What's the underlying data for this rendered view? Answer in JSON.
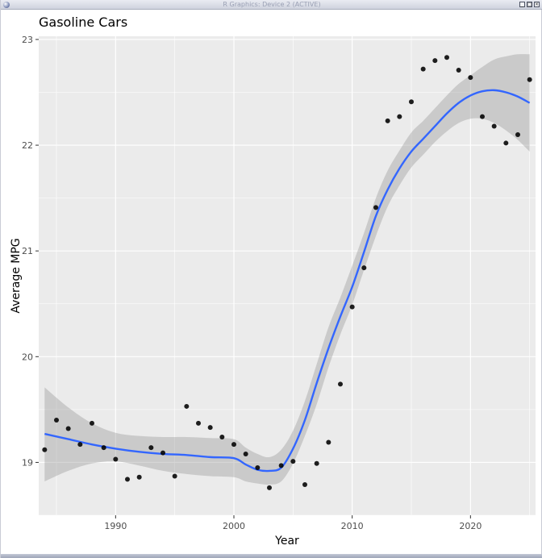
{
  "window": {
    "title": "R Graphics: Device 2 (ACTIVE)"
  },
  "colors": {
    "panel_background": "#EBEBEB",
    "grid_major": "#FFFFFF",
    "smooth_line": "#3366FF",
    "confidence_band": "#999999",
    "points": "#000000"
  },
  "chart_data": {
    "type": "scatter",
    "title": "Gasoline Cars",
    "xlabel": "Year",
    "ylabel": "Average MPG",
    "xlim": [
      1983.5,
      2025.5
    ],
    "ylim": [
      18.5,
      23.03
    ],
    "x_ticks": [
      1990,
      2000,
      2010,
      2020
    ],
    "y_ticks": [
      19,
      20,
      21,
      22,
      23
    ],
    "grid": true,
    "legend": "none",
    "points": {
      "x": [
        1984,
        1985,
        1986,
        1987,
        1988,
        1989,
        1990,
        1991,
        1992,
        1993,
        1994,
        1995,
        1996,
        1997,
        1998,
        1999,
        2000,
        2001,
        2002,
        2003,
        2004,
        2005,
        2006,
        2007,
        2008,
        2009,
        2010,
        2011,
        2012,
        2013,
        2014,
        2015,
        2016,
        2017,
        2018,
        2019,
        2020,
        2021,
        2022,
        2023,
        2024,
        2025
      ],
      "y": [
        19.12,
        19.4,
        19.32,
        19.17,
        19.37,
        19.14,
        19.03,
        18.84,
        18.86,
        19.14,
        19.09,
        18.87,
        19.53,
        19.37,
        19.33,
        19.24,
        19.17,
        19.08,
        18.95,
        18.76,
        18.97,
        19.01,
        18.79,
        18.99,
        19.19,
        19.74,
        20.47,
        20.84,
        21.41,
        22.23,
        22.27,
        22.41,
        22.72,
        22.8,
        22.83,
        22.71,
        22.64,
        22.27,
        22.18,
        22.02,
        22.1,
        22.62
      ]
    },
    "smooth": {
      "method": "loess",
      "x": [
        1984,
        1986,
        1988,
        1990,
        1992,
        1994,
        1996,
        1998,
        2000,
        2001,
        2002,
        2003,
        2004,
        2005,
        2006,
        2007,
        2008,
        2009,
        2010,
        2011,
        2012,
        2013,
        2014,
        2015,
        2016,
        2017,
        2018,
        2019,
        2020,
        2021,
        2022,
        2023,
        2024,
        2025
      ],
      "y": [
        19.27,
        19.22,
        19.17,
        19.13,
        19.1,
        19.08,
        19.07,
        19.05,
        19.04,
        18.98,
        18.93,
        18.92,
        18.95,
        19.13,
        19.4,
        19.75,
        20.08,
        20.38,
        20.66,
        20.99,
        21.33,
        21.58,
        21.78,
        21.94,
        22.06,
        22.18,
        22.3,
        22.4,
        22.47,
        22.51,
        22.52,
        22.5,
        22.46,
        22.4
      ],
      "lower": [
        18.82,
        18.92,
        18.99,
        19.01,
        18.97,
        18.92,
        18.89,
        18.87,
        18.86,
        18.82,
        18.8,
        18.79,
        18.82,
        18.99,
        19.25,
        19.55,
        19.9,
        20.21,
        20.49,
        20.82,
        21.14,
        21.42,
        21.62,
        21.79,
        21.91,
        22.03,
        22.13,
        22.21,
        22.25,
        22.25,
        22.21,
        22.14,
        22.05,
        21.94
      ],
      "upper": [
        19.71,
        19.52,
        19.37,
        19.28,
        19.25,
        19.24,
        19.24,
        19.23,
        19.22,
        19.14,
        19.08,
        19.05,
        19.12,
        19.3,
        19.58,
        19.93,
        20.28,
        20.56,
        20.86,
        21.17,
        21.5,
        21.76,
        21.95,
        22.12,
        22.23,
        22.35,
        22.47,
        22.58,
        22.66,
        22.74,
        22.81,
        22.84,
        22.86,
        22.86
      ]
    }
  }
}
